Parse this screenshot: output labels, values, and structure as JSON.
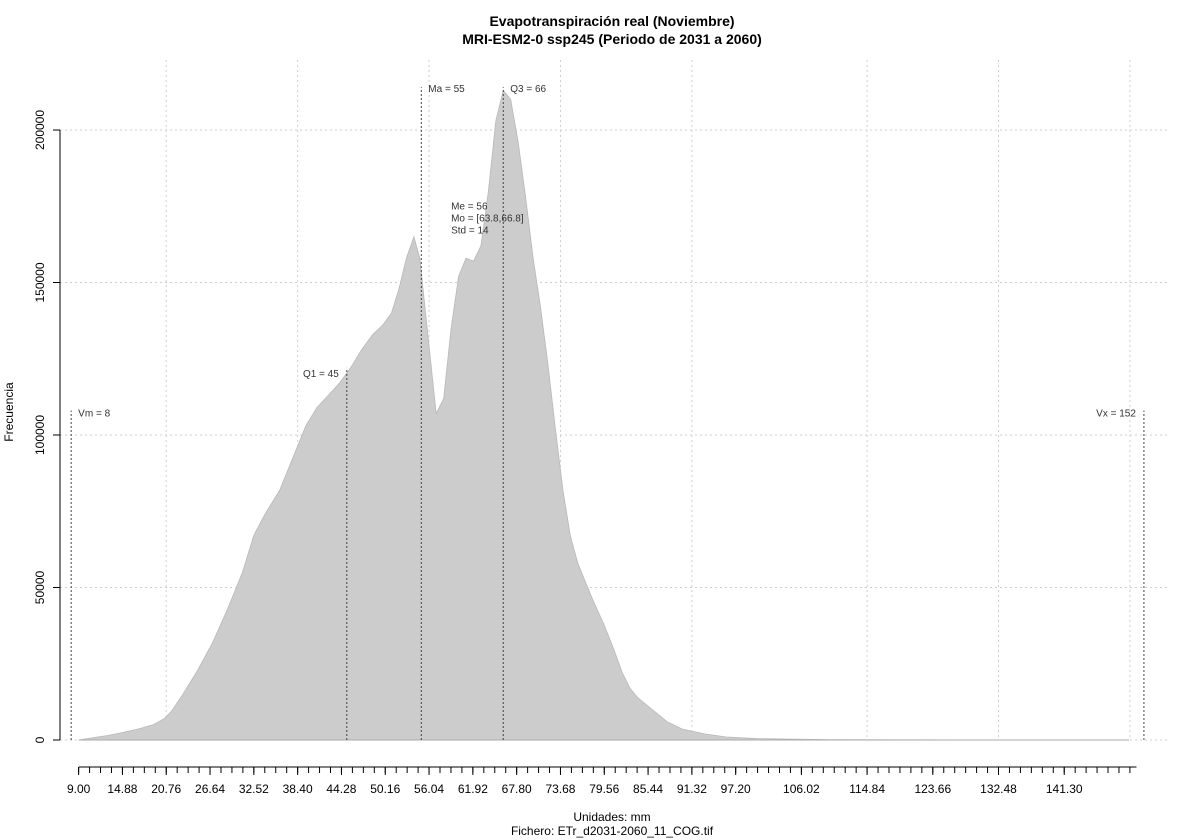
{
  "chart_data": {
    "type": "area",
    "title": "Evapotranspiración real (Noviembre)",
    "subtitle": "MRI-ESM2-0 ssp245 (Periodo de 2031 a 2060)",
    "xlabel": "Unidades: mm",
    "caption": "Fichero: ETr_d2031-2060_11_COG.tif",
    "ylabel": "Frecuencia",
    "xlim": [
      6.5,
      155.5
    ],
    "ylim": [
      0,
      210000
    ],
    "x_tick_labels": [
      "9.00",
      "14.88",
      "20.76",
      "26.64",
      "32.52",
      "38.40",
      "44.28",
      "50.16",
      "56.04",
      "61.92",
      "67.80",
      "73.68",
      "79.56",
      "85.44",
      "91.32",
      "97.20",
      "106.02",
      "114.84",
      "123.66",
      "132.48",
      "141.30"
    ],
    "x_minor_step": 1.47,
    "x_minor_max": 151,
    "y_ticks": [
      0,
      50000,
      100000,
      150000,
      200000
    ],
    "y_tick_labels": [
      "0",
      "50000",
      "100000",
      "150000",
      "200000"
    ],
    "x_grid": [
      20.76,
      38.4,
      56.04,
      73.68,
      91.32,
      114.84,
      132.48,
      150.12
    ],
    "grid": true,
    "series": [
      {
        "values": [
          [
            9.0,
            0
          ],
          [
            11.0,
            800
          ],
          [
            13.0,
            1500
          ],
          [
            15.0,
            2500
          ],
          [
            17.0,
            3600
          ],
          [
            19.0,
            5000
          ],
          [
            20.5,
            7000
          ],
          [
            21.5,
            9500
          ],
          [
            23.0,
            15000
          ],
          [
            25.0,
            23000
          ],
          [
            27.0,
            32000
          ],
          [
            29.0,
            43000
          ],
          [
            31.0,
            55000
          ],
          [
            32.5,
            67000
          ],
          [
            34.0,
            74000
          ],
          [
            36.0,
            82000
          ],
          [
            38.0,
            94000
          ],
          [
            39.5,
            103000
          ],
          [
            41.0,
            109000
          ],
          [
            42.5,
            113000
          ],
          [
            44.0,
            117000
          ],
          [
            45.5,
            122000
          ],
          [
            47.0,
            128000
          ],
          [
            48.5,
            133000
          ],
          [
            49.8,
            136000
          ],
          [
            51.0,
            140000
          ],
          [
            52.0,
            148000
          ],
          [
            53.0,
            158000
          ],
          [
            54.0,
            165000
          ],
          [
            54.8,
            158000
          ],
          [
            56.0,
            130000
          ],
          [
            57.0,
            107000
          ],
          [
            58.0,
            112000
          ],
          [
            59.0,
            135000
          ],
          [
            60.0,
            152000
          ],
          [
            61.0,
            158000
          ],
          [
            62.0,
            157000
          ],
          [
            63.0,
            162000
          ],
          [
            64.0,
            180000
          ],
          [
            65.0,
            203000
          ],
          [
            66.0,
            213000
          ],
          [
            67.0,
            210000
          ],
          [
            68.0,
            196000
          ],
          [
            69.0,
            178000
          ],
          [
            70.0,
            158000
          ],
          [
            71.0,
            142000
          ],
          [
            72.0,
            123000
          ],
          [
            73.0,
            102000
          ],
          [
            74.0,
            82000
          ],
          [
            75.0,
            67000
          ],
          [
            76.0,
            58000
          ],
          [
            77.0,
            52000
          ],
          [
            78.0,
            46000
          ],
          [
            79.5,
            38000
          ],
          [
            80.8,
            30000
          ],
          [
            82.0,
            22000
          ],
          [
            83.0,
            17000
          ],
          [
            84.0,
            14000
          ],
          [
            86.0,
            10000
          ],
          [
            88.0,
            6000
          ],
          [
            90.0,
            3600
          ],
          [
            93.0,
            2000
          ],
          [
            96.0,
            1000
          ],
          [
            100.0,
            500
          ],
          [
            105.0,
            250
          ],
          [
            110.0,
            120
          ],
          [
            120.0,
            50
          ],
          [
            135.0,
            15
          ],
          [
            150.0,
            0
          ]
        ],
        "color": "#cccccc"
      }
    ],
    "annotations": [
      {
        "label": "Vm = 8",
        "x": 8,
        "line_top": 108000,
        "text_y": 107000,
        "anchor": "start"
      },
      {
        "label": "Q1 = 45",
        "x": 45,
        "line_top": 122000,
        "text_y": 120000,
        "anchor": "end"
      },
      {
        "label": "Ma = 55",
        "x": 55,
        "line_top": 214000,
        "text_y": 213500,
        "anchor": "start"
      },
      {
        "label": "Q3 = 66",
        "x": 66,
        "line_top": 214000,
        "text_y": 213500,
        "anchor": "start"
      },
      {
        "label": "Vx = 152",
        "x": 152,
        "line_top": 108000,
        "text_y": 107000,
        "anchor": "end"
      }
    ],
    "stats_text": [
      {
        "label": "Me = 56",
        "text_y": 175000
      },
      {
        "label": "Mo = [63.8,66.8]",
        "text_y": 171000
      },
      {
        "label": "Std = 14",
        "text_y": 167000
      }
    ],
    "stats_x": 59
  }
}
